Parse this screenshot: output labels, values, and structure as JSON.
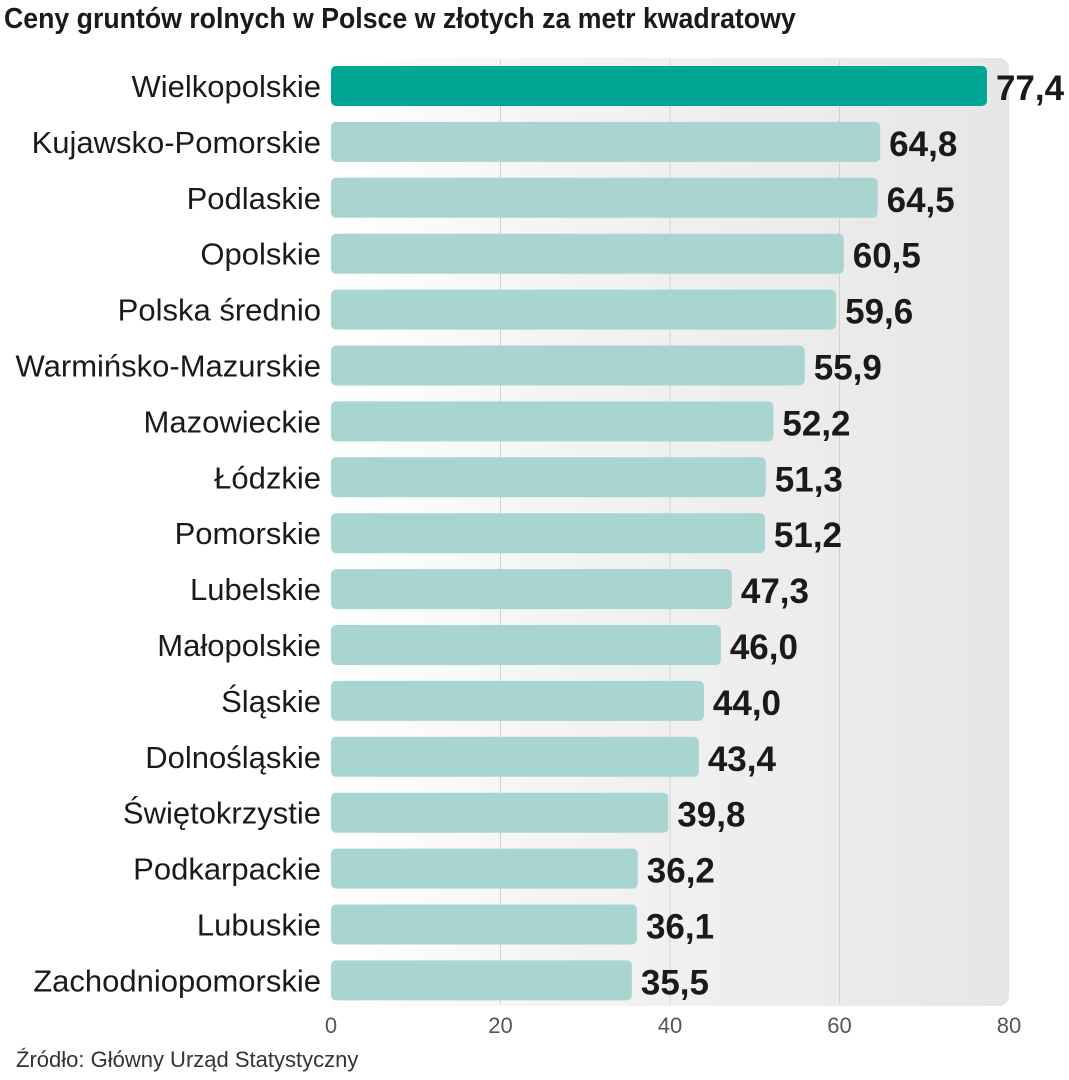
{
  "chart_data": {
    "type": "bar",
    "orientation": "horizontal",
    "title": "Ceny gruntów rolnych w Polsce w złotych za metr kwadratowy",
    "categories": [
      "Wielkopolskie",
      "Kujawsko-Pomorskie",
      "Podlaskie",
      "Opolskie",
      "Polska średnio",
      "Warmińsko-Mazurskie",
      "Mazowieckie",
      "Łódzkie",
      "Pomorskie",
      "Lubelskie",
      "Małopolskie",
      "Śląskie",
      "Dolnośląskie",
      "Świętokrzystie",
      "Podkarpackie",
      "Lubuskie",
      "Zachodniopomorskie"
    ],
    "values": [
      77.4,
      64.8,
      64.5,
      60.5,
      59.6,
      55.9,
      52.2,
      51.3,
      51.2,
      47.3,
      46.0,
      44.0,
      43.4,
      39.8,
      36.2,
      36.1,
      35.5
    ],
    "value_labels": [
      "77,4",
      "64,8",
      "64,5",
      "60,5",
      "59,6",
      "55,9",
      "52,2",
      "51,3",
      "51,2",
      "47,3",
      "46,0",
      "44,0",
      "43,4",
      "39,8",
      "36,2",
      "36,1",
      "35,5"
    ],
    "xlim": [
      0,
      80
    ],
    "xticks": [
      0,
      20,
      40,
      60,
      80
    ],
    "xtick_labels": [
      "0",
      "20",
      "40",
      "60",
      "80"
    ],
    "grid": true,
    "highlight_index": 0,
    "colors": {
      "highlight": "#00a693",
      "bar": "#a8d5cf",
      "plot_background": "#ebebeb",
      "grid": "#d2d2d2"
    }
  },
  "source": "Źródło: Główny Urząd Statystyczny"
}
